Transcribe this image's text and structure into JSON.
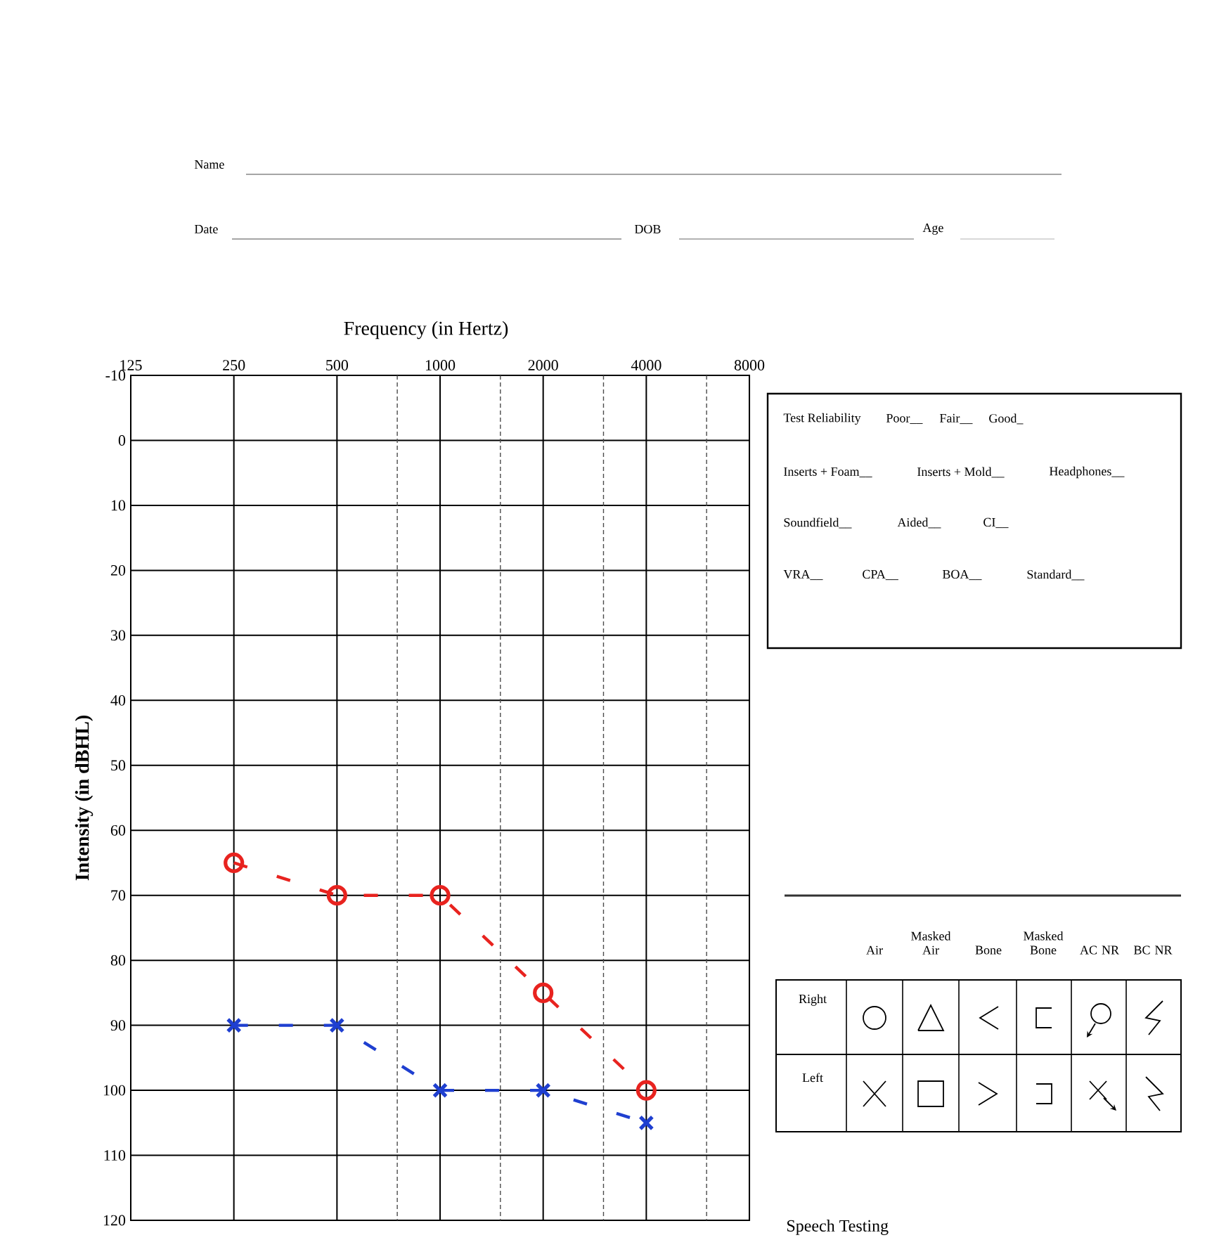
{
  "chart_data": {
    "type": "line",
    "xlabel": "Frequency (in Hertz)",
    "ylabel": "Intensity (in dBHL)",
    "log": "x",
    "grid": true,
    "line_style": "dashed",
    "x": [
      250,
      500,
      1000,
      2000,
      4000
    ],
    "xlim": [
      125,
      8000
    ],
    "xticks": [
      125,
      250,
      500,
      1000,
      2000,
      4000,
      8000,
      {
        "value": 750,
        "label": null
      },
      {
        "value": 1500,
        "label": null
      },
      {
        "value": 3000,
        "label": null
      },
      {
        "value": 6000,
        "label": null
      }
    ],
    "ylim": [
      120,
      -10
    ],
    "yticks": [
      -10,
      0,
      10,
      20,
      30,
      40,
      50,
      60,
      70,
      80,
      90,
      100,
      110,
      120
    ],
    "series": [
      {
        "color": "#e8231f",
        "marker": "circle",
        "values": [
          65,
          70,
          70,
          85,
          100
        ]
      },
      {
        "color": "#1f3fd0",
        "marker": "cross",
        "values": [
          90,
          90,
          100,
          100,
          105
        ]
      }
    ],
    "annotations": [
      "Name",
      "Date",
      "DOB",
      "Age",
      "Test Reliability",
      "Poor__",
      "Fair__",
      "Good_",
      "Inserts + Foam__",
      "Inserts + Mold__",
      "Headphones__",
      "Soundfield__",
      "Aided__",
      "CI__",
      "VRA__",
      "CPA__",
      "BOA__",
      "Standard__",
      "Air",
      "Masked Air",
      "Bone",
      "Masked Bone",
      "AC NR",
      "BC NR",
      "Right",
      "Left",
      "Speech Testing"
    ]
  }
}
